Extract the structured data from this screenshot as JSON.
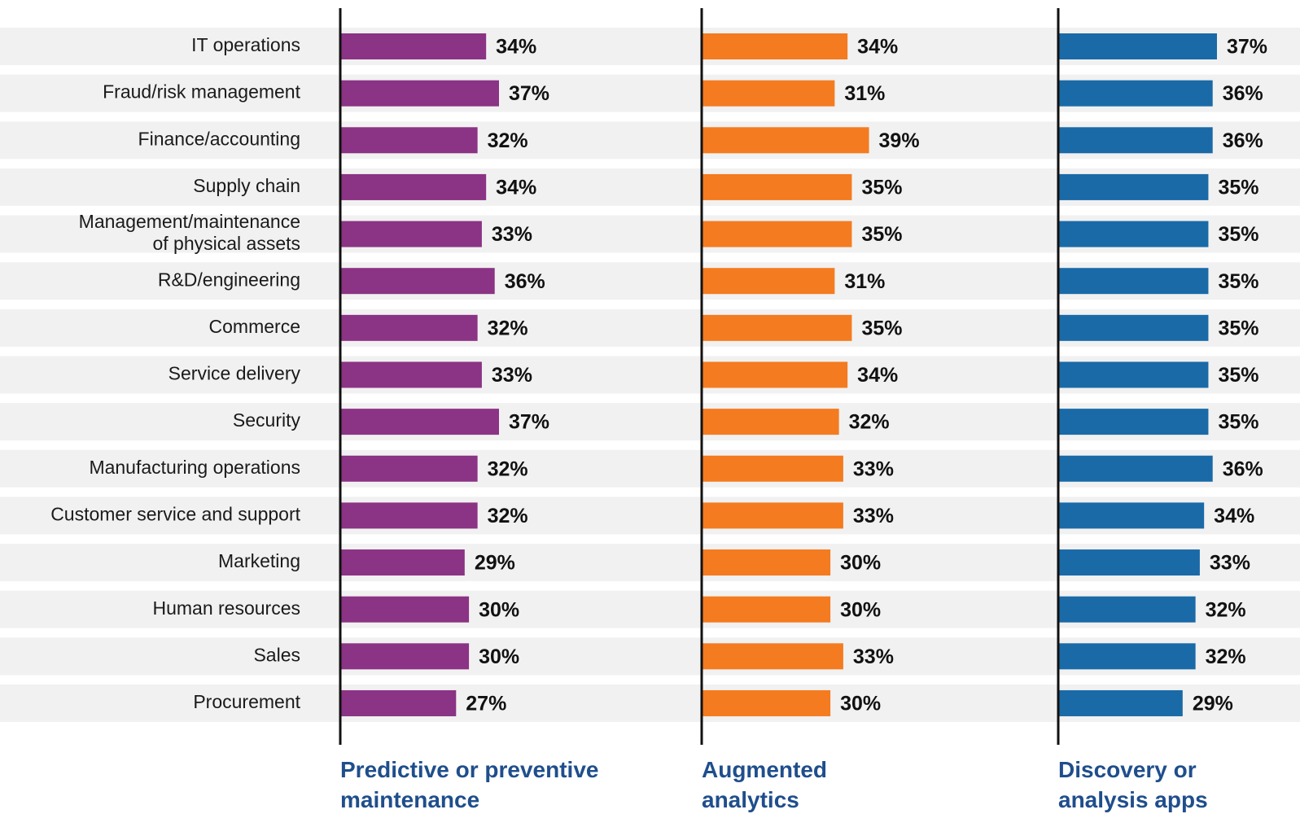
{
  "chart_data": {
    "type": "bar",
    "categories": [
      "IT operations",
      "Fraud/risk management",
      "Finance/accounting",
      "Supply chain",
      "Management/maintenance\nof physical assets",
      "R&D/engineering",
      "Commerce",
      "Service delivery",
      "Security",
      "Manufacturing operations",
      "Customer service and support",
      "Marketing",
      "Human resources",
      "Sales",
      "Procurement"
    ],
    "series": [
      {
        "name": "Predictive or preventive\nmaintenance",
        "color": "#8b3384",
        "values": [
          34,
          37,
          32,
          34,
          33,
          36,
          32,
          33,
          37,
          32,
          32,
          29,
          30,
          30,
          27
        ],
        "value_labels": [
          "34%",
          "37%",
          "32%",
          "34%",
          "33%",
          "36%",
          "32%",
          "33%",
          "37%",
          "32%",
          "32%",
          "29%",
          "30%",
          "30%",
          "27%"
        ]
      },
      {
        "name": "Augmented\nanalytics",
        "color": "#f47b20",
        "values": [
          34,
          31,
          39,
          35,
          35,
          31,
          35,
          34,
          32,
          33,
          33,
          30,
          30,
          33,
          30
        ],
        "value_labels": [
          "34%",
          "31%",
          "39%",
          "35%",
          "35%",
          "31%",
          "35%",
          "34%",
          "32%",
          "33%",
          "33%",
          "30%",
          "30%",
          "33%",
          "30%"
        ]
      },
      {
        "name": "Discovery or\nanalysis apps",
        "color": "#1a6aa8",
        "values": [
          37,
          36,
          36,
          35,
          35,
          35,
          35,
          35,
          35,
          36,
          34,
          33,
          32,
          32,
          29
        ],
        "value_labels": [
          "37%",
          "36%",
          "36%",
          "35%",
          "35%",
          "35%",
          "35%",
          "35%",
          "35%",
          "36%",
          "34%",
          "33%",
          "32%",
          "32%",
          "29%"
        ]
      }
    ]
  }
}
